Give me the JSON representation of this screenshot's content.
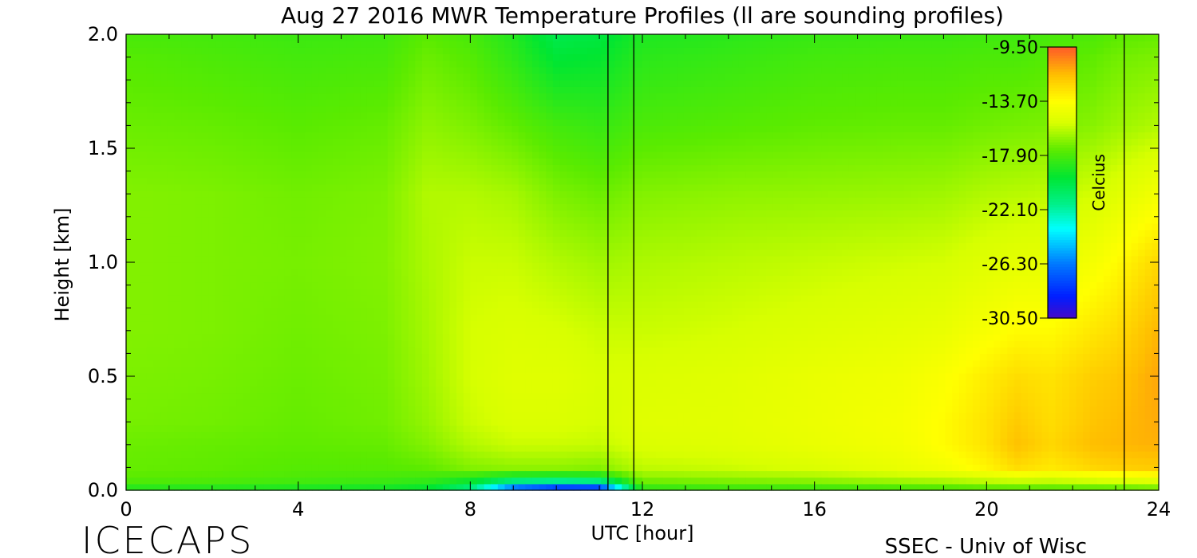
{
  "chart_data": {
    "type": "heatmap",
    "title": "Aug 27 2016 MWR Temperature Profiles (ll are sounding profiles)",
    "xlabel": "UTC [hour]",
    "ylabel": "Height [km]",
    "xlim": [
      0,
      24
    ],
    "ylim": [
      0,
      2.0
    ],
    "x_ticks": [
      0,
      4,
      8,
      12,
      16,
      20,
      24
    ],
    "x_tick_labels": [
      "0",
      "4",
      "8",
      "12",
      "16",
      "20",
      "24"
    ],
    "y_ticks": [
      0,
      0.5,
      1.0,
      1.5,
      2.0
    ],
    "y_tick_labels": [
      "0.0",
      "0.5",
      "1.0",
      "1.5",
      "2.0"
    ],
    "sounding_times_utc": [
      11.2,
      11.8,
      23.2
    ],
    "colorbar": {
      "label": "Celcius",
      "min": -30.5,
      "max": -9.5,
      "tick_labels": [
        "-9.50",
        "-13.70",
        "-17.90",
        "-22.10",
        "-26.30",
        "-30.50"
      ],
      "tick_values": [
        -9.5,
        -13.7,
        -17.9,
        -22.1,
        -26.3,
        -30.5
      ]
    },
    "data_heights_km": [
      0.0,
      0.05,
      0.1,
      0.2,
      0.3,
      0.5,
      0.7,
      1.0,
      1.3,
      1.6,
      1.9,
      2.0
    ],
    "data_times_utc": [
      0,
      2,
      4,
      6,
      7,
      8,
      9,
      10,
      11,
      12,
      14,
      16,
      18,
      19,
      20,
      20.7,
      21.5,
      22.5,
      23,
      24
    ],
    "temperature_c": [
      [
        -19.0,
        -17.5,
        -17.3,
        -17.2,
        -17.0,
        -16.9,
        -16.8,
        -16.8,
        -16.8,
        -17.2,
        -17.6,
        -17.9
      ],
      [
        -19.0,
        -17.6,
        -17.4,
        -17.3,
        -17.1,
        -17.0,
        -16.9,
        -16.9,
        -16.9,
        -17.3,
        -17.8,
        -18.0
      ],
      [
        -19.2,
        -17.8,
        -17.6,
        -17.4,
        -17.3,
        -17.2,
        -17.1,
        -17.0,
        -17.1,
        -17.5,
        -18.0,
        -18.2
      ],
      [
        -19.4,
        -18.0,
        -17.6,
        -17.3,
        -17.1,
        -17.0,
        -16.9,
        -16.8,
        -16.9,
        -17.3,
        -17.9,
        -18.1
      ],
      [
        -19.8,
        -18.2,
        -17.4,
        -16.8,
        -16.5,
        -16.3,
        -16.2,
        -16.1,
        -16.0,
        -16.6,
        -17.2,
        -17.5
      ],
      [
        -22.0,
        -18.8,
        -16.8,
        -16.0,
        -15.6,
        -15.4,
        -15.4,
        -15.6,
        -16.0,
        -16.9,
        -17.6,
        -17.9
      ],
      [
        -28.5,
        -20.0,
        -16.6,
        -15.6,
        -15.2,
        -15.0,
        -15.2,
        -15.6,
        -16.2,
        -17.4,
        -18.5,
        -18.8
      ],
      [
        -30.5,
        -20.2,
        -16.6,
        -15.6,
        -15.2,
        -15.0,
        -15.3,
        -16.0,
        -16.9,
        -18.0,
        -19.7,
        -20.2
      ],
      [
        -30.5,
        -19.8,
        -16.8,
        -15.7,
        -15.4,
        -15.3,
        -15.6,
        -16.3,
        -17.2,
        -18.3,
        -19.5,
        -19.9
      ],
      [
        -18.8,
        -16.8,
        -15.8,
        -15.2,
        -15.0,
        -15.2,
        -15.6,
        -16.1,
        -16.8,
        -17.8,
        -18.6,
        -18.9
      ],
      [
        -18.5,
        -16.6,
        -15.6,
        -15.0,
        -14.9,
        -15.0,
        -15.4,
        -15.9,
        -16.6,
        -17.6,
        -18.3,
        -18.6
      ],
      [
        -18.5,
        -16.4,
        -15.2,
        -14.6,
        -14.5,
        -14.6,
        -15.1,
        -15.7,
        -16.5,
        -17.4,
        -18.0,
        -18.3
      ],
      [
        -18.3,
        -16.0,
        -14.6,
        -14.2,
        -14.1,
        -14.3,
        -14.8,
        -15.5,
        -16.4,
        -17.3,
        -17.9,
        -18.2
      ],
      [
        -18.2,
        -15.8,
        -14.2,
        -13.6,
        -13.6,
        -13.9,
        -14.6,
        -15.4,
        -16.3,
        -17.3,
        -17.9,
        -18.2
      ],
      [
        -18.0,
        -15.4,
        -13.4,
        -12.8,
        -12.8,
        -13.1,
        -14.0,
        -15.0,
        -16.0,
        -17.1,
        -17.8,
        -18.1
      ],
      [
        -18.0,
        -15.2,
        -12.6,
        -11.7,
        -12.0,
        -12.6,
        -13.6,
        -14.8,
        -15.9,
        -17.0,
        -17.8,
        -18.1
      ],
      [
        -18.0,
        -15.3,
        -13.0,
        -12.4,
        -12.6,
        -12.8,
        -13.6,
        -14.7,
        -15.8,
        -16.9,
        -17.6,
        -17.9
      ],
      [
        -18.0,
        -15.0,
        -12.4,
        -11.6,
        -11.8,
        -12.1,
        -12.9,
        -14.1,
        -15.4,
        -16.7,
        -17.4,
        -17.8
      ],
      [
        -18.0,
        -14.8,
        -12.2,
        -11.5,
        -11.6,
        -11.9,
        -12.6,
        -13.6,
        -15.0,
        -16.4,
        -17.1,
        -17.5
      ],
      [
        -17.6,
        -14.5,
        -12.0,
        -11.3,
        -11.2,
        -11.1,
        -11.4,
        -12.4,
        -14.2,
        -16.0,
        -16.9,
        -17.3
      ]
    ]
  },
  "footer": {
    "left_logo_text": "ICECAPS",
    "right_credit": "SSEC - Univ of Wisc"
  },
  "colors": {
    "background": "#ffffff",
    "axes": "#000000"
  }
}
